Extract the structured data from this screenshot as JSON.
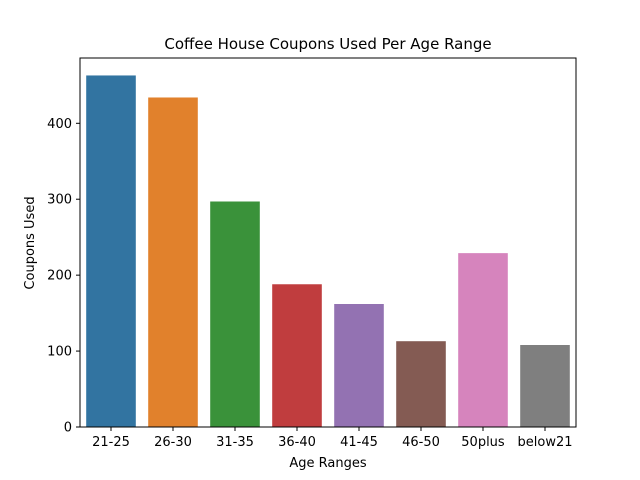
{
  "chart_data": {
    "type": "bar",
    "title": "Coffee House Coupons Used Per Age Range",
    "xlabel": "Age Ranges",
    "ylabel": "Coupons Used",
    "categories": [
      "21-25",
      "26-30",
      "31-35",
      "36-40",
      "41-45",
      "46-50",
      "50plus",
      "below21"
    ],
    "values": [
      463,
      434,
      297,
      188,
      162,
      113,
      229,
      108
    ],
    "colors": [
      "#3274a1",
      "#e1812c",
      "#3a923a",
      "#c03d3e",
      "#9372b2",
      "#845b53",
      "#d684bd",
      "#7f7f7f"
    ],
    "ylim": [
      0,
      486
    ],
    "yticks": [
      0,
      100,
      200,
      300,
      400
    ],
    "grid": false,
    "legend": "none"
  }
}
